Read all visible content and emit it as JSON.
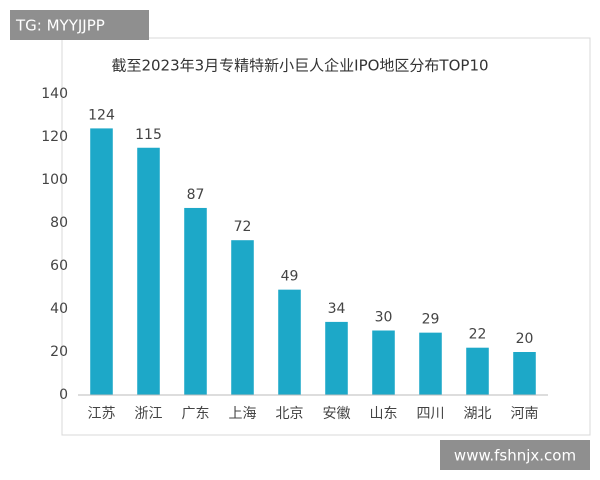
{
  "chart_data": {
    "type": "bar",
    "title": "截至2023年3月专精特新小巨人企业IPO地区分布TOP10",
    "categories": [
      "江苏",
      "浙江",
      "广东",
      "上海",
      "北京",
      "安徽",
      "山东",
      "四川",
      "湖北",
      "河南"
    ],
    "values": [
      124,
      115,
      87,
      72,
      49,
      34,
      30,
      29,
      22,
      20
    ],
    "color": "#1da8c8",
    "ylim": [
      0,
      140
    ],
    "yticks": [
      0,
      20,
      40,
      60,
      80,
      100,
      120,
      140
    ],
    "grid": false
  },
  "overlays": {
    "top_left": "TG: MYYJJPP",
    "bottom_right": "www.fshnjx.com"
  }
}
